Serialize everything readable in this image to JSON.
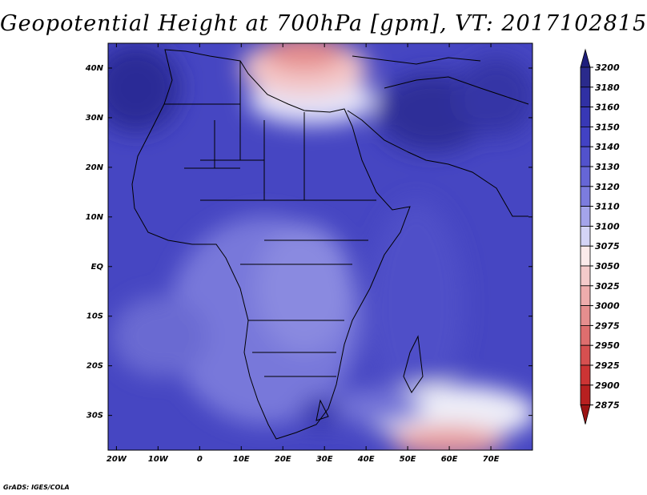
{
  "title": "Geopotential Height at 700hPa [gpm], VT: 2017102815",
  "credit": "GrADS: IGES/COLA",
  "map": {
    "lon_range": [
      -22,
      80
    ],
    "lat_range": [
      -37,
      45
    ],
    "lon_ticks": [
      {
        "value": -20,
        "label": "20W"
      },
      {
        "value": -10,
        "label": "10W"
      },
      {
        "value": 0,
        "label": "0"
      },
      {
        "value": 10,
        "label": "10E"
      },
      {
        "value": 20,
        "label": "20E"
      },
      {
        "value": 30,
        "label": "30E"
      },
      {
        "value": 40,
        "label": "40E"
      },
      {
        "value": 50,
        "label": "50E"
      },
      {
        "value": 60,
        "label": "60E"
      },
      {
        "value": 70,
        "label": "70E"
      }
    ],
    "lat_ticks": [
      {
        "value": 40,
        "label": "40N"
      },
      {
        "value": 30,
        "label": "30N"
      },
      {
        "value": 20,
        "label": "20N"
      },
      {
        "value": 10,
        "label": "10N"
      },
      {
        "value": 0,
        "label": "EQ"
      },
      {
        "value": -10,
        "label": "10S"
      },
      {
        "value": -20,
        "label": "20S"
      },
      {
        "value": -30,
        "label": "30S"
      }
    ]
  },
  "colorbar": {
    "levels": [
      "3200",
      "3180",
      "3160",
      "3150",
      "3140",
      "3130",
      "3120",
      "3110",
      "3100",
      "3075",
      "3050",
      "3025",
      "3000",
      "2975",
      "2950",
      "2925",
      "2900",
      "2875"
    ],
    "colors": [
      "#2a2a8c",
      "#3030a4",
      "#3838b6",
      "#4242c4",
      "#5252cc",
      "#6666d6",
      "#7c7cde",
      "#a4a4ea",
      "#d4d4f6",
      "#fbeaea",
      "#f4caca",
      "#eeacac",
      "#e68e8e",
      "#de6e6e",
      "#d65050",
      "#cc3434",
      "#b82020",
      "#9c1414"
    ],
    "top_color": "#1e1e7c"
  }
}
